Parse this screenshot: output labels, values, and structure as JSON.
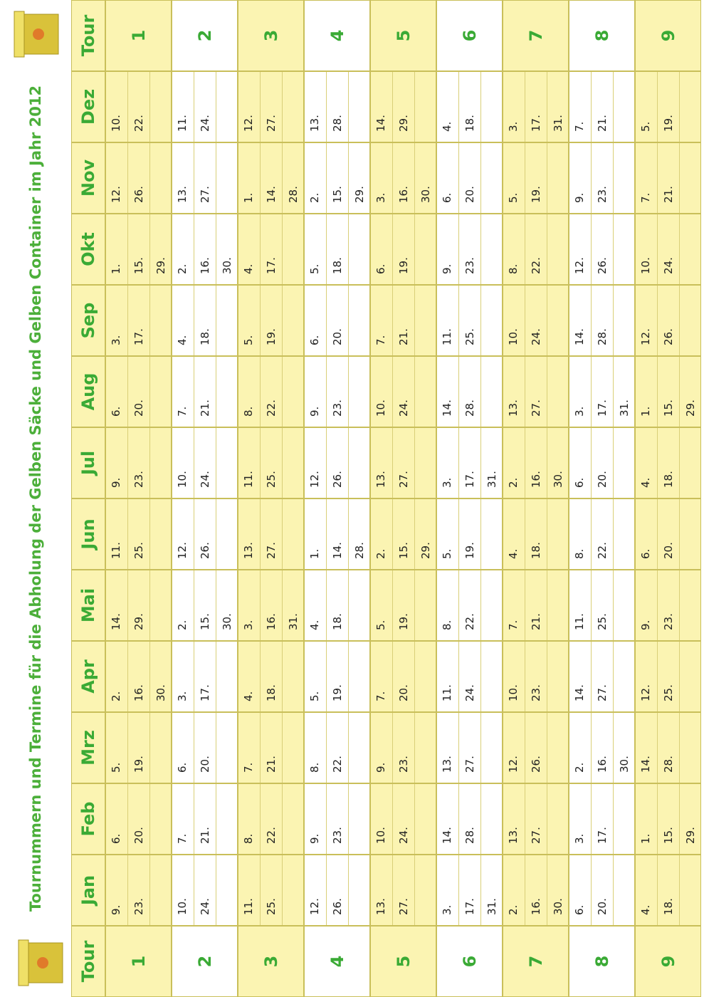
{
  "title": "Tournummern und Termine für die Abholung der Gelben Säcke und Gelben Container im Jahr 2012",
  "header": {
    "tour": "Tour",
    "months": [
      "Jan",
      "Feb",
      "Mrz",
      "Apr",
      "Mai",
      "Jun",
      "Jul",
      "Aug",
      "Sep",
      "Okt",
      "Nov",
      "Dez"
    ]
  },
  "rows": [
    {
      "tour": "1",
      "dates": [
        [
          "9.",
          "23."
        ],
        [
          "6.",
          "20."
        ],
        [
          "5.",
          "19."
        ],
        [
          "2.",
          "16.",
          "30."
        ],
        [
          "14.",
          "29."
        ],
        [
          "11.",
          "25."
        ],
        [
          "9.",
          "23."
        ],
        [
          "6.",
          "20."
        ],
        [
          "3.",
          "17."
        ],
        [
          "1.",
          "15.",
          "29."
        ],
        [
          "12.",
          "26."
        ],
        [
          "10.",
          "22."
        ]
      ]
    },
    {
      "tour": "2",
      "dates": [
        [
          "10.",
          "24."
        ],
        [
          "7.",
          "21."
        ],
        [
          "6.",
          "20."
        ],
        [
          "3.",
          "17."
        ],
        [
          "2.",
          "15.",
          "30."
        ],
        [
          "12.",
          "26."
        ],
        [
          "10.",
          "24."
        ],
        [
          "7.",
          "21."
        ],
        [
          "4.",
          "18."
        ],
        [
          "2.",
          "16.",
          "30."
        ],
        [
          "13.",
          "27."
        ],
        [
          "11.",
          "24."
        ]
      ]
    },
    {
      "tour": "3",
      "dates": [
        [
          "11.",
          "25."
        ],
        [
          "8.",
          "22."
        ],
        [
          "7.",
          "21."
        ],
        [
          "4.",
          "18."
        ],
        [
          "3.",
          "16.",
          "31."
        ],
        [
          "13.",
          "27."
        ],
        [
          "11.",
          "25."
        ],
        [
          "8.",
          "22."
        ],
        [
          "5.",
          "19."
        ],
        [
          "4.",
          "17."
        ],
        [
          "1.",
          "14.",
          "28."
        ],
        [
          "12.",
          "27."
        ]
      ]
    },
    {
      "tour": "4",
      "dates": [
        [
          "12.",
          "26."
        ],
        [
          "9.",
          "23."
        ],
        [
          "8.",
          "22."
        ],
        [
          "5.",
          "19."
        ],
        [
          "4.",
          "18."
        ],
        [
          "1.",
          "14.",
          "28."
        ],
        [
          "12.",
          "26."
        ],
        [
          "9.",
          "23."
        ],
        [
          "6.",
          "20."
        ],
        [
          "5.",
          "18."
        ],
        [
          "2.",
          "15.",
          "29."
        ],
        [
          "13.",
          "28."
        ]
      ]
    },
    {
      "tour": "5",
      "dates": [
        [
          "13.",
          "27."
        ],
        [
          "10.",
          "24."
        ],
        [
          "9.",
          "23."
        ],
        [
          "7.",
          "20."
        ],
        [
          "5.",
          "19."
        ],
        [
          "2.",
          "15.",
          "29."
        ],
        [
          "13.",
          "27."
        ],
        [
          "10.",
          "24."
        ],
        [
          "7.",
          "21."
        ],
        [
          "6.",
          "19."
        ],
        [
          "3.",
          "16.",
          "30."
        ],
        [
          "14.",
          "29."
        ]
      ]
    },
    {
      "tour": "6",
      "dates": [
        [
          "3.",
          "17.",
          "31."
        ],
        [
          "14.",
          "28."
        ],
        [
          "13.",
          "27."
        ],
        [
          "11.",
          "24."
        ],
        [
          "8.",
          "22."
        ],
        [
          "5.",
          "19."
        ],
        [
          "3.",
          "17.",
          "31."
        ],
        [
          "14.",
          "28."
        ],
        [
          "11.",
          "25."
        ],
        [
          "9.",
          "23."
        ],
        [
          "6.",
          "20."
        ],
        [
          "4.",
          "18."
        ]
      ]
    },
    {
      "tour": "7",
      "dates": [
        [
          "2.",
          "16.",
          "30."
        ],
        [
          "13.",
          "27."
        ],
        [
          "12.",
          "26."
        ],
        [
          "10.",
          "23."
        ],
        [
          "7.",
          "21."
        ],
        [
          "4.",
          "18."
        ],
        [
          "2.",
          "16.",
          "30."
        ],
        [
          "13.",
          "27."
        ],
        [
          "10.",
          "24."
        ],
        [
          "8.",
          "22."
        ],
        [
          "5.",
          "19."
        ],
        [
          "3.",
          "17.",
          "31."
        ]
      ]
    },
    {
      "tour": "8",
      "dates": [
        [
          "6.",
          "20."
        ],
        [
          "3.",
          "17."
        ],
        [
          "2.",
          "16.",
          "30."
        ],
        [
          "14.",
          "27."
        ],
        [
          "11.",
          "25."
        ],
        [
          "8.",
          "22."
        ],
        [
          "6.",
          "20."
        ],
        [
          "3.",
          "17.",
          "31."
        ],
        [
          "14.",
          "28."
        ],
        [
          "12.",
          "26."
        ],
        [
          "9.",
          "23."
        ],
        [
          "7.",
          "21."
        ]
      ]
    },
    {
      "tour": "9",
      "dates": [
        [
          "4.",
          "18."
        ],
        [
          "1.",
          "15.",
          "29."
        ],
        [
          "14.",
          "28."
        ],
        [
          "12.",
          "25."
        ],
        [
          "9.",
          "23."
        ],
        [
          "6.",
          "20."
        ],
        [
          "4.",
          "18."
        ],
        [
          "1.",
          "15.",
          "29."
        ],
        [
          "12.",
          "26."
        ],
        [
          "10.",
          "24."
        ],
        [
          "7.",
          "21."
        ],
        [
          "5.",
          "19."
        ]
      ]
    }
  ]
}
